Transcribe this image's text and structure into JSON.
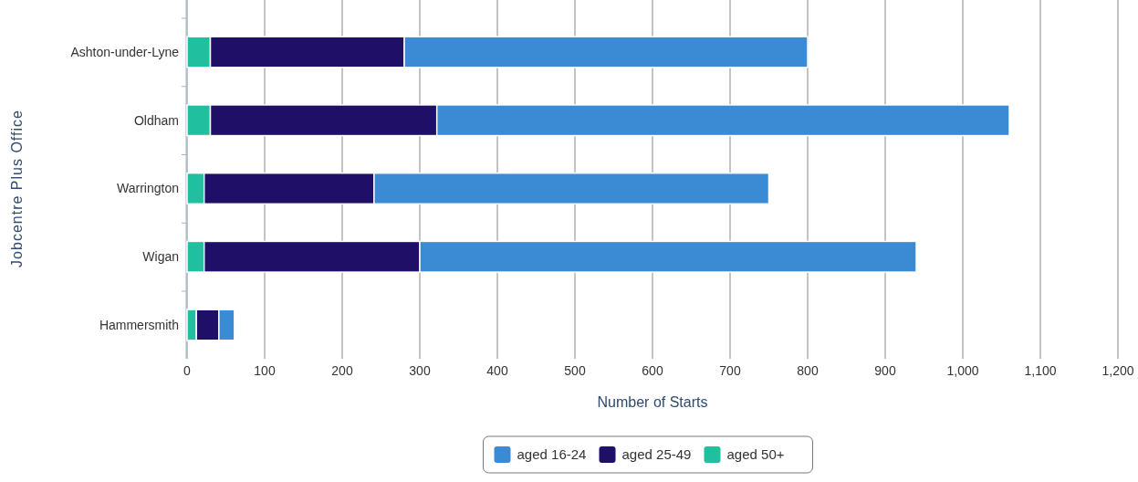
{
  "chart_data": {
    "type": "bar",
    "orientation": "horizontal",
    "stacked": true,
    "xlabel": "Number of Starts",
    "ylabel": "Jobcentre Plus Office",
    "categories": [
      "Ashton-under-Lyne",
      "Oldham",
      "Warrington",
      "Wigan",
      "Hammersmith"
    ],
    "series": [
      {
        "name": "aged 50+",
        "color": "#1fbf9f",
        "values": [
          30,
          30,
          22,
          22,
          12
        ]
      },
      {
        "name": "aged 25-49",
        "color": "#1f0f66",
        "values": [
          250,
          292,
          219,
          278,
          29
        ]
      },
      {
        "name": "aged 16-24",
        "color": "#3a8bd4",
        "values": [
          520,
          738,
          509,
          640,
          20
        ]
      }
    ],
    "xlim": [
      0,
      1200
    ],
    "xticks": [
      0,
      100,
      200,
      300,
      400,
      500,
      600,
      700,
      800,
      900,
      {
        "value": 1000,
        "label": "1,000"
      },
      {
        "value": 1100,
        "label": "1,100"
      },
      {
        "value": 1200,
        "label": "1,200"
      }
    ],
    "grid": "x",
    "legend": "bottom"
  }
}
